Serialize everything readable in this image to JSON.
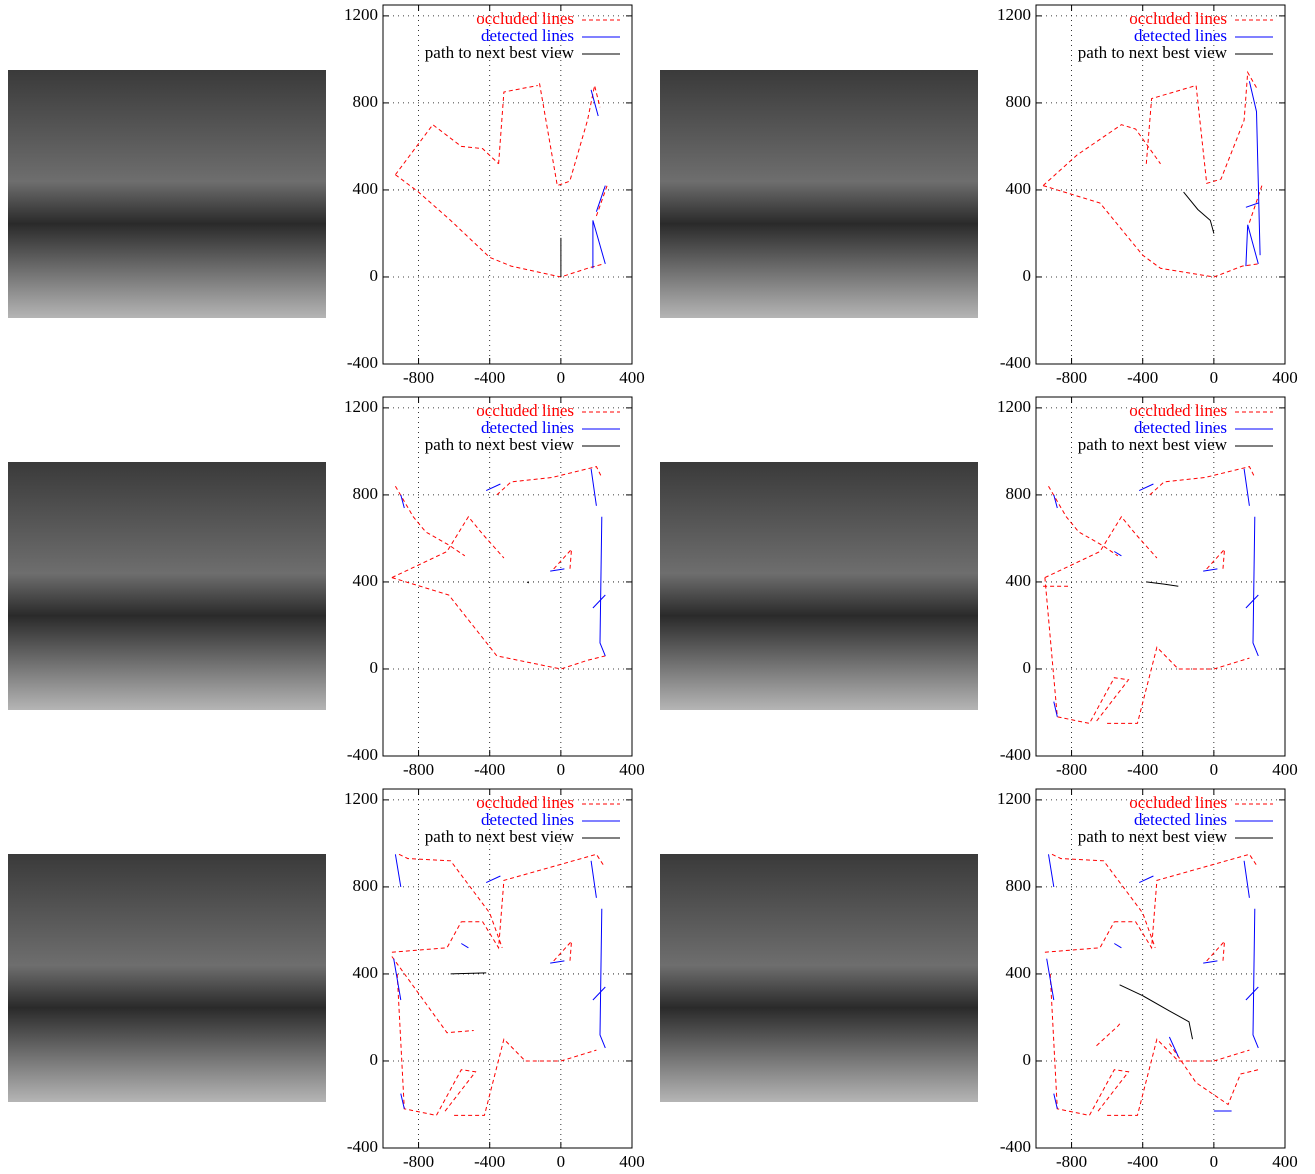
{
  "chart_data": [
    {
      "type": "line",
      "xlim": [
        -1000,
        400
      ],
      "ylim": [
        -400,
        1250
      ],
      "xticks": [
        -800,
        -400,
        0,
        400
      ],
      "yticks": [
        -400,
        0,
        400,
        800,
        1200
      ],
      "grid": true,
      "legend": "upper right",
      "series": [
        {
          "name": "occluded lines",
          "color": "#ff0000",
          "style": "dashed",
          "x": [
            -930,
            -720,
            -560,
            -440,
            -350,
            null,
            -350,
            -320,
            -130,
            null,
            -120,
            -20,
            50,
            150,
            190,
            220,
            null,
            -930,
            -800,
            -620,
            -400,
            -280,
            0,
            150,
            240,
            null,
            200,
            260
          ],
          "values": [
            470,
            700,
            600,
            590,
            520,
            null,
            520,
            850,
            880,
            null,
            890,
            420,
            440,
            720,
            880,
            780,
            null,
            470,
            390,
            260,
            90,
            50,
            0,
            40,
            60,
            null,
            280,
            420
          ]
        },
        {
          "name": "detected lines",
          "color": "#0000ff",
          "style": "solid",
          "x": [
            180,
            180,
            250,
            null,
            200,
            250,
            null,
            170,
            210
          ],
          "values": [
            40,
            260,
            60,
            null,
            300,
            420,
            null,
            860,
            740
          ]
        },
        {
          "name": "path to next best view",
          "color": "#000000",
          "style": "solid",
          "x": [
            0,
            0
          ],
          "values": [
            0,
            180
          ]
        }
      ]
    },
    {
      "type": "line",
      "xlim": [
        -1000,
        400
      ],
      "ylim": [
        -400,
        1250
      ],
      "xticks": [
        -800,
        -400,
        0,
        400
      ],
      "yticks": [
        -400,
        0,
        400,
        800,
        1200
      ],
      "grid": true,
      "legend": "upper right",
      "series": [
        {
          "name": "occluded lines",
          "color": "#ff0000",
          "style": "dashed",
          "x": [
            -960,
            -770,
            -520,
            -440,
            -300,
            null,
            -380,
            -350,
            -100,
            -40,
            40,
            170,
            190,
            240,
            null,
            -960,
            -640,
            -400,
            -300,
            0,
            160,
            250,
            null,
            200,
            270
          ],
          "values": [
            420,
            560,
            700,
            680,
            520,
            null,
            520,
            820,
            880,
            430,
            450,
            720,
            940,
            870,
            null,
            420,
            340,
            100,
            40,
            0,
            50,
            60,
            null,
            250,
            420
          ]
        },
        {
          "name": "detected lines",
          "color": "#0000ff",
          "style": "solid",
          "x": [
            180,
            190,
            250,
            null,
            180,
            250,
            null,
            200,
            240,
            260
          ],
          "values": [
            50,
            240,
            60,
            null,
            320,
            340,
            null,
            900,
            760,
            100
          ]
        },
        {
          "name": "path to next best view",
          "color": "#000000",
          "style": "solid",
          "x": [
            -170,
            -90,
            -20,
            0
          ],
          "values": [
            390,
            310,
            260,
            200
          ]
        }
      ]
    },
    {
      "type": "line",
      "xlim": [
        -1000,
        400
      ],
      "ylim": [
        -400,
        1250
      ],
      "xticks": [
        -800,
        -400,
        0,
        400
      ],
      "yticks": [
        -400,
        0,
        400,
        800,
        1200
      ],
      "grid": true,
      "legend": "upper right",
      "series": [
        {
          "name": "occluded lines",
          "color": "#ff0000",
          "style": "dashed",
          "x": [
            -930,
            -830,
            -760,
            -630,
            -540,
            null,
            -950,
            -640,
            -520,
            -440,
            -320,
            null,
            -360,
            -280,
            -50,
            200,
            230,
            null,
            -950,
            -630,
            -360,
            0,
            150,
            250,
            null,
            -40,
            60,
            50
          ],
          "values": [
            840,
            700,
            630,
            570,
            520,
            null,
            420,
            540,
            700,
            620,
            510,
            null,
            800,
            860,
            880,
            930,
            880,
            null,
            420,
            340,
            60,
            0,
            40,
            60,
            null,
            460,
            550,
            450
          ]
        },
        {
          "name": "detected lines",
          "color": "#0000ff",
          "style": "solid",
          "x": [
            -900,
            -880,
            null,
            -420,
            -340,
            null,
            -60,
            20,
            null,
            170,
            200,
            null,
            230,
            220,
            250,
            null,
            180,
            250
          ],
          "values": [
            800,
            740,
            null,
            820,
            850,
            null,
            450,
            460,
            null,
            920,
            750,
            null,
            700,
            120,
            60,
            null,
            280,
            340
          ]
        },
        {
          "name": "path to next best view",
          "color": "#000000",
          "style": "solid",
          "x": [
            -190,
            -180
          ],
          "values": [
            400,
            395
          ]
        }
      ]
    },
    {
      "type": "line",
      "xlim": [
        -1000,
        400
      ],
      "ylim": [
        -400,
        1250
      ],
      "xticks": [
        -800,
        -400,
        0,
        400
      ],
      "yticks": [
        -400,
        0,
        400,
        800,
        1200
      ],
      "grid": true,
      "legend": "upper right",
      "series": [
        {
          "name": "occluded lines",
          "color": "#ff0000",
          "style": "dashed",
          "x": [
            -930,
            -830,
            -760,
            -630,
            -540,
            null,
            -950,
            -640,
            -520,
            -440,
            -320,
            null,
            -360,
            -280,
            -50,
            200,
            230,
            null,
            -950,
            -880,
            -700,
            -560,
            -480,
            -660,
            null,
            -600,
            -430,
            -320,
            -200,
            0,
            200,
            null,
            -960,
            -820,
            null,
            -40,
            60,
            50
          ],
          "values": [
            840,
            700,
            630,
            570,
            520,
            null,
            420,
            540,
            700,
            620,
            510,
            null,
            800,
            860,
            880,
            930,
            880,
            null,
            420,
            -220,
            -250,
            -40,
            -50,
            -240,
            null,
            -250,
            -250,
            100,
            0,
            0,
            50,
            null,
            380,
            380,
            null,
            460,
            550,
            450
          ]
        },
        {
          "name": "detected lines",
          "color": "#0000ff",
          "style": "solid",
          "x": [
            -900,
            -880,
            null,
            -560,
            -520,
            null,
            -420,
            -340,
            null,
            -60,
            20,
            null,
            170,
            200,
            null,
            230,
            220,
            250,
            null,
            180,
            250,
            null,
            -900,
            -880
          ],
          "values": [
            800,
            740,
            null,
            540,
            520,
            null,
            820,
            850,
            null,
            450,
            460,
            null,
            920,
            750,
            null,
            700,
            120,
            60,
            null,
            280,
            340,
            null,
            -150,
            -220
          ]
        },
        {
          "name": "path to next best view",
          "color": "#000000",
          "style": "solid",
          "x": [
            -380,
            -280,
            -200
          ],
          "values": [
            400,
            390,
            380
          ]
        }
      ]
    },
    {
      "type": "line",
      "xlim": [
        -1000,
        400
      ],
      "ylim": [
        -400,
        1250
      ],
      "xticks": [
        -800,
        -400,
        0,
        400
      ],
      "yticks": [
        -400,
        0,
        400,
        800,
        1200
      ],
      "grid": true,
      "legend": "upper right",
      "series": [
        {
          "name": "occluded lines",
          "color": "#ff0000",
          "style": "dashed",
          "x": [
            -910,
            -860,
            -620,
            -400,
            -330,
            null,
            -950,
            -640,
            -560,
            null,
            -560,
            -440,
            -350,
            -320,
            200,
            240,
            null,
            -920,
            -880,
            -700,
            -560,
            -480,
            -660,
            null,
            -600,
            -430,
            -320,
            -200,
            0,
            200,
            null,
            -950,
            -640,
            -490,
            null,
            -40,
            60,
            50
          ],
          "values": [
            950,
            930,
            920,
            680,
            520,
            null,
            500,
            520,
            640,
            null,
            640,
            640,
            520,
            830,
            950,
            900,
            null,
            400,
            -220,
            -250,
            -40,
            -50,
            -240,
            null,
            -250,
            -250,
            100,
            0,
            0,
            50,
            null,
            480,
            130,
            140,
            null,
            460,
            550,
            450
          ]
        },
        {
          "name": "detected lines",
          "color": "#0000ff",
          "style": "solid",
          "x": [
            -930,
            -900,
            null,
            -940,
            -900,
            null,
            -560,
            -520,
            null,
            -420,
            -340,
            null,
            -60,
            20,
            null,
            170,
            200,
            null,
            230,
            220,
            250,
            null,
            180,
            250,
            null,
            -900,
            -880
          ],
          "values": [
            950,
            800,
            null,
            470,
            280,
            null,
            540,
            520,
            null,
            820,
            850,
            null,
            450,
            460,
            null,
            920,
            750,
            null,
            700,
            120,
            60,
            null,
            280,
            340,
            null,
            -150,
            -220
          ]
        },
        {
          "name": "path to next best view",
          "color": "#000000",
          "style": "solid",
          "x": [
            -620,
            -420
          ],
          "values": [
            400,
            405
          ]
        }
      ]
    },
    {
      "type": "line",
      "xlim": [
        -1000,
        400
      ],
      "ylim": [
        -400,
        1250
      ],
      "xticks": [
        -800,
        -400,
        0,
        400
      ],
      "yticks": [
        -400,
        0,
        400,
        800,
        1200
      ],
      "grid": true,
      "legend": "upper right",
      "series": [
        {
          "name": "occluded lines",
          "color": "#ff0000",
          "style": "dashed",
          "x": [
            -910,
            -860,
            -620,
            -400,
            -330,
            null,
            -950,
            -640,
            -560,
            null,
            -560,
            -440,
            -350,
            -320,
            200,
            240,
            null,
            -920,
            -880,
            -700,
            -560,
            -480,
            -660,
            null,
            -600,
            -430,
            -320,
            -200,
            0,
            200,
            null,
            -660,
            -540,
            -520,
            null,
            -40,
            60,
            50,
            null,
            -250,
            -100,
            80,
            150,
            250
          ],
          "values": [
            950,
            930,
            920,
            680,
            520,
            null,
            500,
            520,
            640,
            null,
            640,
            640,
            520,
            830,
            950,
            900,
            null,
            400,
            -220,
            -250,
            -40,
            -50,
            -240,
            null,
            -250,
            -250,
            100,
            0,
            0,
            50,
            null,
            70,
            160,
            180,
            null,
            460,
            550,
            450,
            null,
            80,
            -100,
            -200,
            -60,
            -40
          ]
        },
        {
          "name": "detected lines",
          "color": "#0000ff",
          "style": "solid",
          "x": [
            -930,
            -900,
            null,
            -940,
            -900,
            null,
            -560,
            -520,
            null,
            -420,
            -340,
            null,
            -60,
            20,
            null,
            170,
            200,
            null,
            230,
            220,
            250,
            null,
            180,
            250,
            null,
            -900,
            -880,
            null,
            -250,
            -200,
            null,
            0,
            100
          ],
          "values": [
            950,
            800,
            null,
            470,
            280,
            null,
            540,
            520,
            null,
            820,
            850,
            null,
            450,
            460,
            null,
            920,
            750,
            null,
            700,
            120,
            60,
            null,
            280,
            340,
            null,
            -150,
            -220,
            null,
            110,
            20,
            null,
            -230,
            -230
          ]
        },
        {
          "name": "path to next best view",
          "color": "#000000",
          "style": "solid",
          "x": [
            -530,
            -400,
            -250,
            -140,
            -120
          ],
          "values": [
            350,
            300,
            230,
            180,
            100
          ]
        }
      ]
    }
  ]
}
